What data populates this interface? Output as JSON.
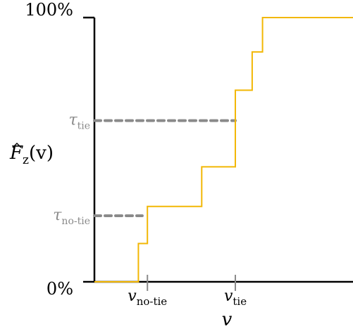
{
  "chart_data": {
    "type": "line",
    "step": "post",
    "ylabel": {
      "main": "F",
      "sub": "z",
      "arg": "(v)"
    },
    "xlabel": "v",
    "y_ticks": [
      "100%",
      "0%"
    ],
    "ylim": [
      0,
      100
    ],
    "xlim": [
      0,
      100
    ],
    "series": [
      {
        "x": [
          0,
          17,
          17,
          20.5,
          20.5,
          41.5,
          41.5,
          54.5,
          54.5,
          61,
          61,
          65,
          65,
          100
        ],
        "y": [
          0,
          0,
          14.5,
          14.5,
          28.5,
          28.5,
          43.5,
          43.5,
          72.5,
          72.5,
          87,
          87,
          100,
          100
        ]
      }
    ],
    "thresholds": [
      {
        "label": "τ",
        "sub": "tie",
        "y": 61,
        "x_end": 54.5,
        "x_tick": 54.5,
        "tick_label": "v",
        "tick_sub": "tie"
      },
      {
        "label": "τ",
        "sub": "no-tie",
        "y": 25,
        "x_end": 18.5,
        "x_tick": 20.5,
        "tick_label": "v",
        "tick_sub": "no-tie"
      }
    ],
    "colors": {
      "series": "#f2b705",
      "threshold": "#8a8a8a",
      "axis": "#000000"
    }
  }
}
